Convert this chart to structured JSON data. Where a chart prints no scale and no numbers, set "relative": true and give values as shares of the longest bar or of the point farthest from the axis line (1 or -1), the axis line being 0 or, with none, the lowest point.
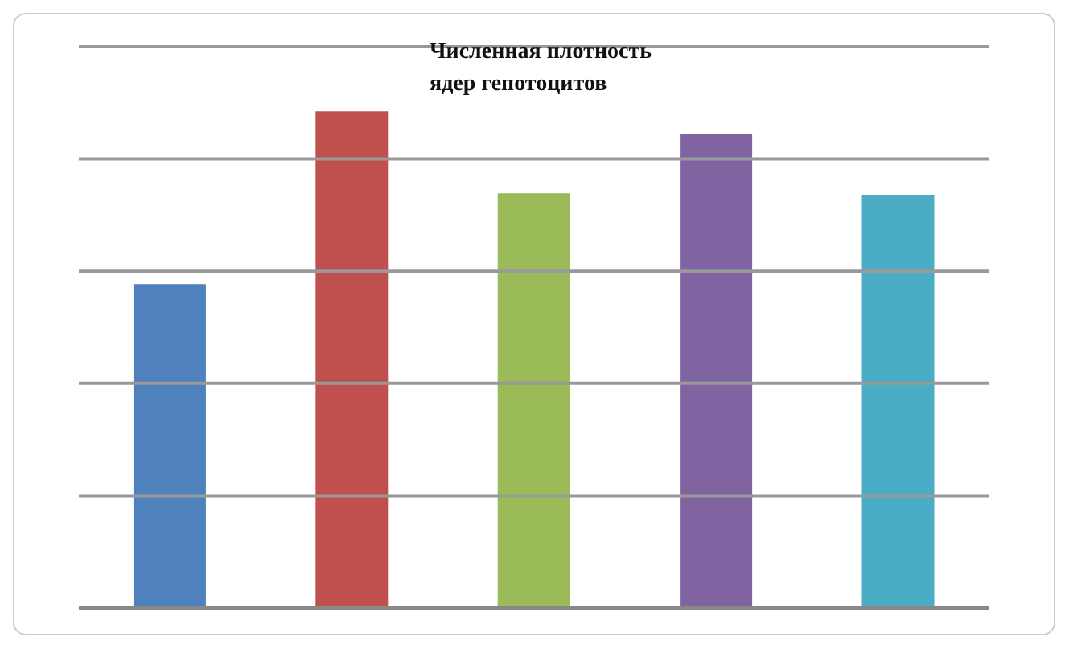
{
  "chart_data": {
    "type": "bar",
    "title": "Численная плотность\nядер гепотоцитов",
    "relative": true,
    "grid": "y",
    "categories": [
      null,
      null,
      null,
      null,
      null
    ],
    "values": [
      0.652,
      1,
      0.835,
      0.955,
      0.832
    ],
    "colors": [
      "#4f81bd",
      "#c0504d",
      "#9bbb59",
      "#8064a2",
      "#4bacc6"
    ]
  }
}
